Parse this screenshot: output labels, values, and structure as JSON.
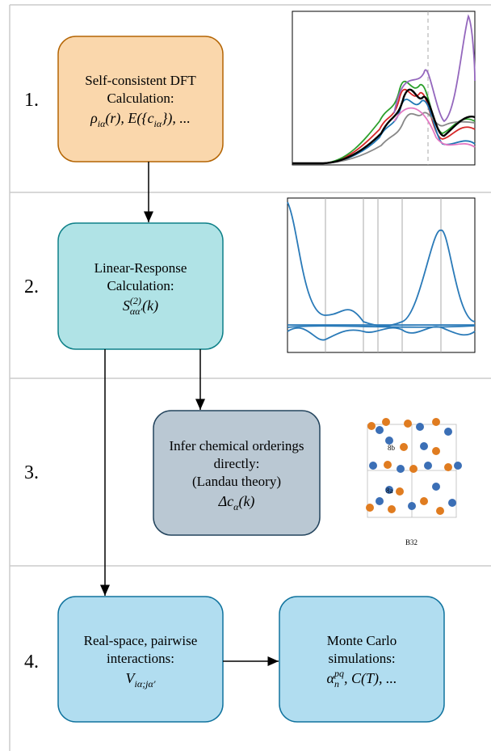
{
  "rows": [
    {
      "number": "1."
    },
    {
      "number": "2."
    },
    {
      "number": "3."
    },
    {
      "number": "4."
    }
  ],
  "boxes": [
    {
      "lines": [
        "Self-consistent DFT",
        "Calculation:"
      ],
      "formula": [
        {
          "t": "ρ"
        },
        {
          "sub": "iα"
        },
        {
          "t": "(r), E({c"
        },
        {
          "sub": "iα"
        },
        {
          "t": "}), ..."
        }
      ]
    },
    {
      "lines": [
        "Linear-Response",
        "Calculation:"
      ],
      "formula": [
        {
          "t": "S"
        },
        {
          "sup": "(2)"
        },
        {
          "sub": "αα′"
        },
        {
          "t": "(k)"
        }
      ]
    },
    {
      "lines": [
        "Infer chemical orderings",
        "directly:",
        "(Landau theory)"
      ],
      "formula": [
        {
          "t": "Δc"
        },
        {
          "sub": "α"
        },
        {
          "t": "(k)"
        }
      ]
    },
    {
      "lines": [
        "Real-space, pairwise",
        "interactions:"
      ],
      "formula": [
        {
          "t": "V"
        },
        {
          "sub": "iα;jα′"
        }
      ]
    },
    {
      "lines": [
        "Monte Carlo",
        "simulations:"
      ],
      "formula": [
        {
          "t": "α"
        },
        {
          "sup": "pq"
        },
        {
          "sub": "n"
        },
        {
          "t": ", C(T), ..."
        }
      ]
    }
  ],
  "figure_labels": [
    "8b",
    "8a",
    "B32"
  ]
}
